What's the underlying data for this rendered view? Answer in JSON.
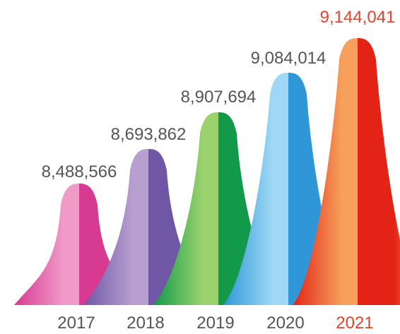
{
  "chart_data": {
    "type": "area",
    "style": "bell-peaks",
    "categories": [
      "2017",
      "2018",
      "2019",
      "2020",
      "2021"
    ],
    "values": [
      8488566,
      8693862,
      8907694,
      9084014,
      9144041
    ],
    "value_labels": [
      "8,488,566",
      "8,693,862",
      "8,907,694",
      "9,084,014",
      "9,144,041"
    ],
    "highlight_index": 4,
    "grid": false,
    "legend": "none",
    "colors": {
      "label": "#555555",
      "highlight_label": "#e8412c",
      "peaks": [
        {
          "light": "#f09ac8",
          "dark": "#d63b91"
        },
        {
          "light": "#b79fd0",
          "dark": "#6f57a6"
        },
        {
          "light": "#9bd26e",
          "dark": "#129a4a"
        },
        {
          "light": "#9fd8f5",
          "dark": "#2f97d8"
        },
        {
          "light": "#f6a05c",
          "dark": "#e32315"
        }
      ]
    }
  }
}
